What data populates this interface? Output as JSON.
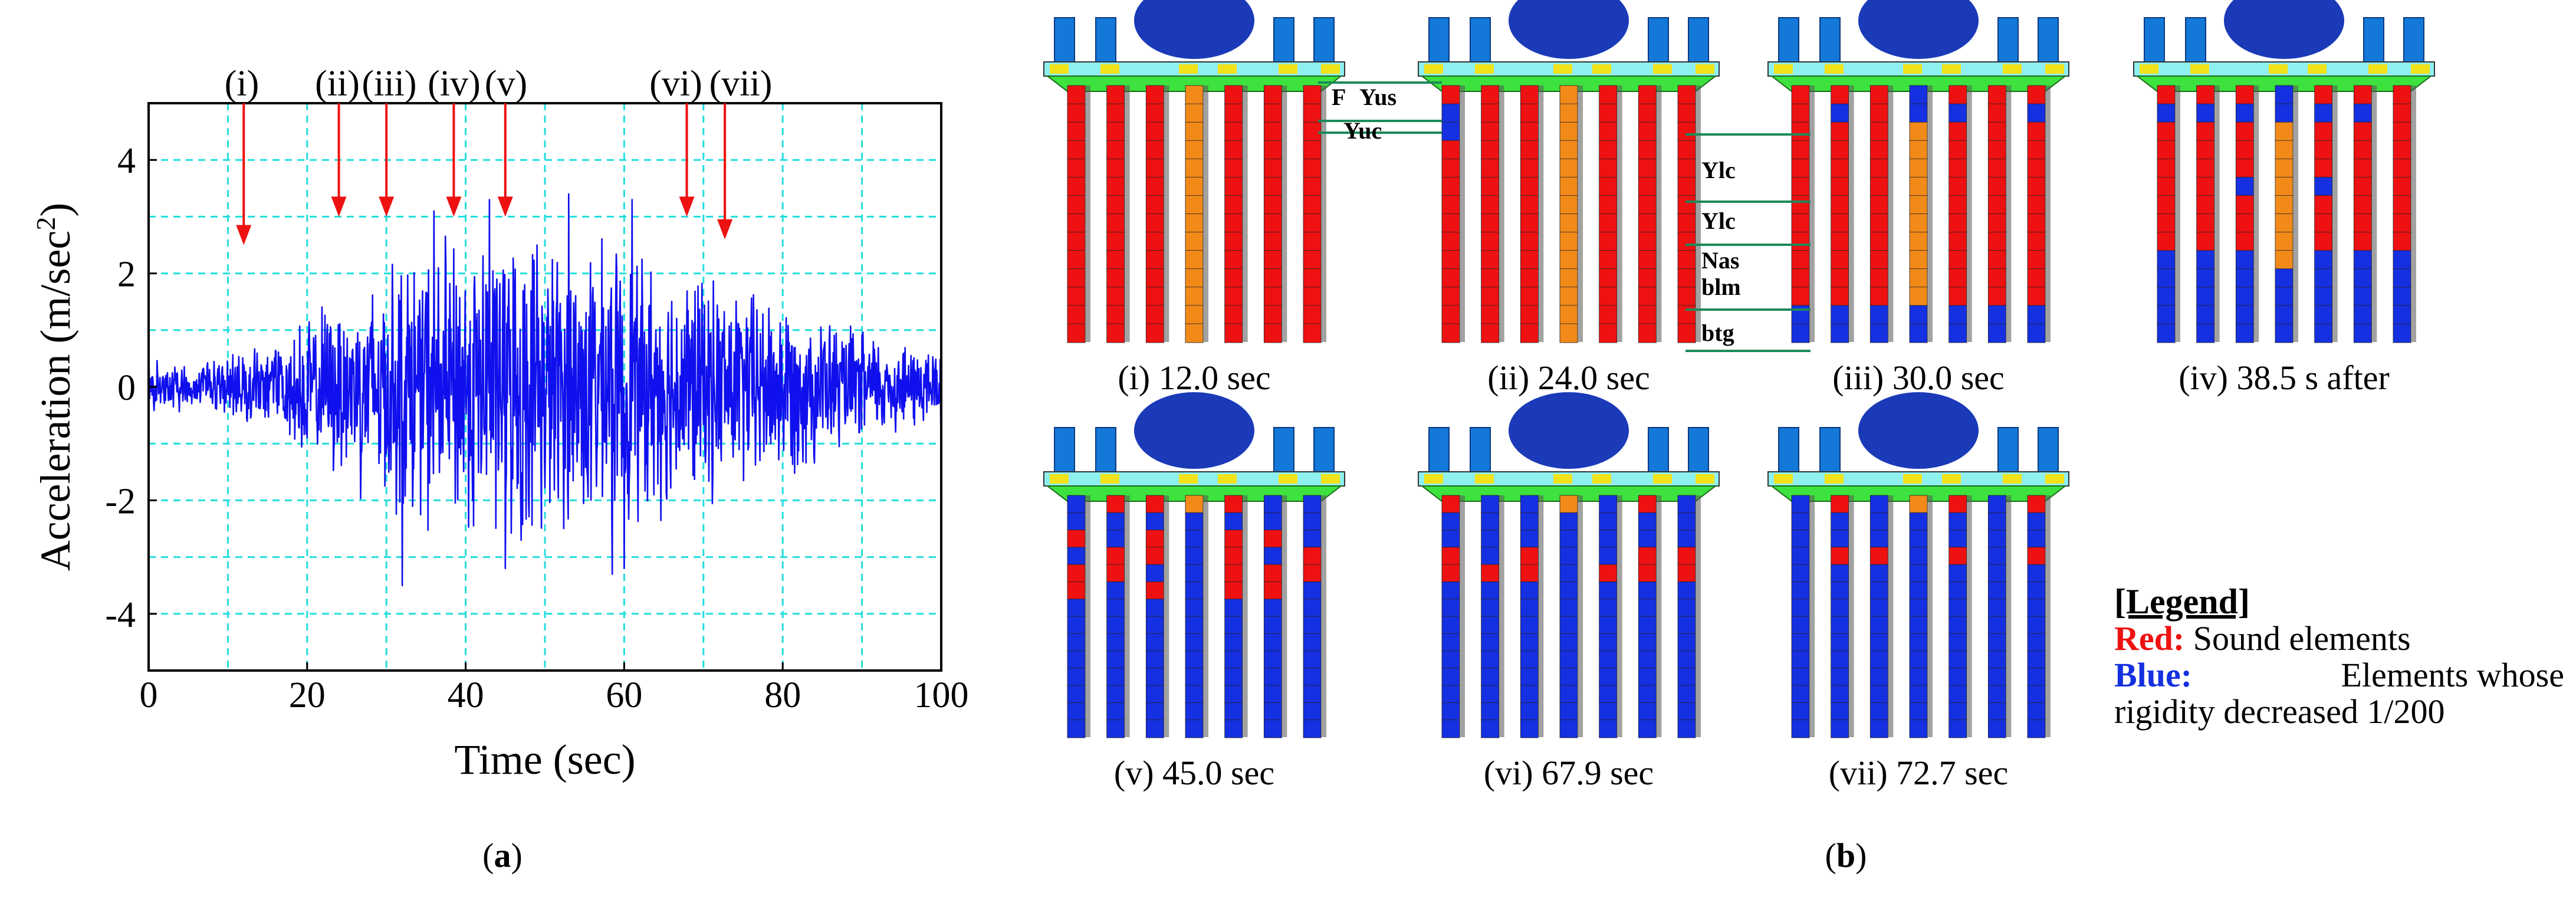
{
  "panel_a": {
    "label": "(a)",
    "label_bold": "a"
  },
  "panel_b": {
    "label": "(b)",
    "label_bold": "b",
    "snapshots": [
      {
        "caption": "(i) 12.0 sec",
        "time": 12.0,
        "pattern": 0
      },
      {
        "caption": "(ii) 24.0 sec",
        "time": 24.0,
        "pattern": 1
      },
      {
        "caption": "(iii) 30.0 sec",
        "time": 30.0,
        "pattern": 2
      },
      {
        "caption": "(iv) 38.5 s after",
        "time": 38.5,
        "pattern": 3
      },
      {
        "caption": "(v) 45.0 sec",
        "time": 45.0,
        "pattern": 4
      },
      {
        "caption": "(vi) 67.9 sec",
        "time": 67.9,
        "pattern": 5
      },
      {
        "caption": "(vii) 72.7 sec",
        "time": 72.7,
        "pattern": 6
      }
    ],
    "annotations_ii": [
      "F",
      "Yus",
      "Yuc"
    ],
    "annotations_iii": [
      "Ylc",
      "Ylc",
      "Nas",
      "blm",
      "btg"
    ],
    "legend": {
      "title": "[Legend]",
      "red_label": "Red:",
      "red_text": "Sound elements",
      "blue_label": "Blue:",
      "blue_text_line1": "Elements whose",
      "blue_text_line2": "rigidity decreased 1/200"
    },
    "colors": {
      "sound": "#ee1111",
      "degraded": "#1530e0",
      "orange": "#f28a1a",
      "deck": "#3ee23e",
      "yellow": "#f2e21a",
      "cyan": "#8ff0f0",
      "column_top": "#1478d8",
      "dome": "#1a3ab8"
    }
  },
  "chart_data": {
    "type": "line",
    "xlabel": "Time (sec)",
    "ylabel": "Acceleration (m/sec",
    "ylabel_sup": "2",
    "ylabel_end": ")",
    "xlim": [
      0,
      100
    ],
    "ylim": [
      -5,
      5
    ],
    "xticks": [
      0,
      20,
      40,
      60,
      80,
      100
    ],
    "xtick_labels": [
      "0",
      "20",
      "40",
      "60",
      "80",
      "100"
    ],
    "yticks": [
      -4,
      -2,
      0,
      2,
      4
    ],
    "ytick_labels": [
      "-4",
      "-2",
      "0",
      "2",
      "4"
    ],
    "grid": true,
    "series_color": "#1010ee",
    "arrow_color": "#ee1111",
    "grid_color": "#22dddd",
    "envelope": [
      [
        0,
        0.5
      ],
      [
        10,
        0.6
      ],
      [
        18,
        1.0
      ],
      [
        22,
        1.6
      ],
      [
        28,
        2.2
      ],
      [
        32,
        2.6
      ],
      [
        38,
        2.9
      ],
      [
        45,
        3.0
      ],
      [
        50,
        2.8
      ],
      [
        56,
        2.8
      ],
      [
        62,
        2.6
      ],
      [
        70,
        2.2
      ],
      [
        80,
        1.8
      ],
      [
        88,
        1.2
      ],
      [
        95,
        0.9
      ],
      [
        100,
        0.8
      ]
    ],
    "peaks": [
      [
        32.0,
        -3.5
      ],
      [
        36.0,
        3.1
      ],
      [
        43.0,
        3.3
      ],
      [
        45.0,
        -3.2
      ],
      [
        53.0,
        3.4
      ],
      [
        60.0,
        -3.2
      ],
      [
        61.0,
        3.3
      ],
      [
        58.5,
        -3.3
      ],
      [
        47.0,
        -2.7
      ],
      [
        49.0,
        2.5
      ]
    ],
    "events": [
      {
        "label": "(i)",
        "time": 12.0,
        "level": 2.5
      },
      {
        "label": "(ii)",
        "time": 24.0,
        "level": 3.0
      },
      {
        "label": "(iii)",
        "time": 30.0,
        "level": 3.0
      },
      {
        "label": "(iv)",
        "time": 38.5,
        "level": 3.0
      },
      {
        "label": "(v)",
        "time": 45.0,
        "level": 3.0
      },
      {
        "label": "(vi)",
        "time": 67.9,
        "level": 3.0
      },
      {
        "label": "(vii)",
        "time": 72.7,
        "level": 2.6
      }
    ]
  }
}
